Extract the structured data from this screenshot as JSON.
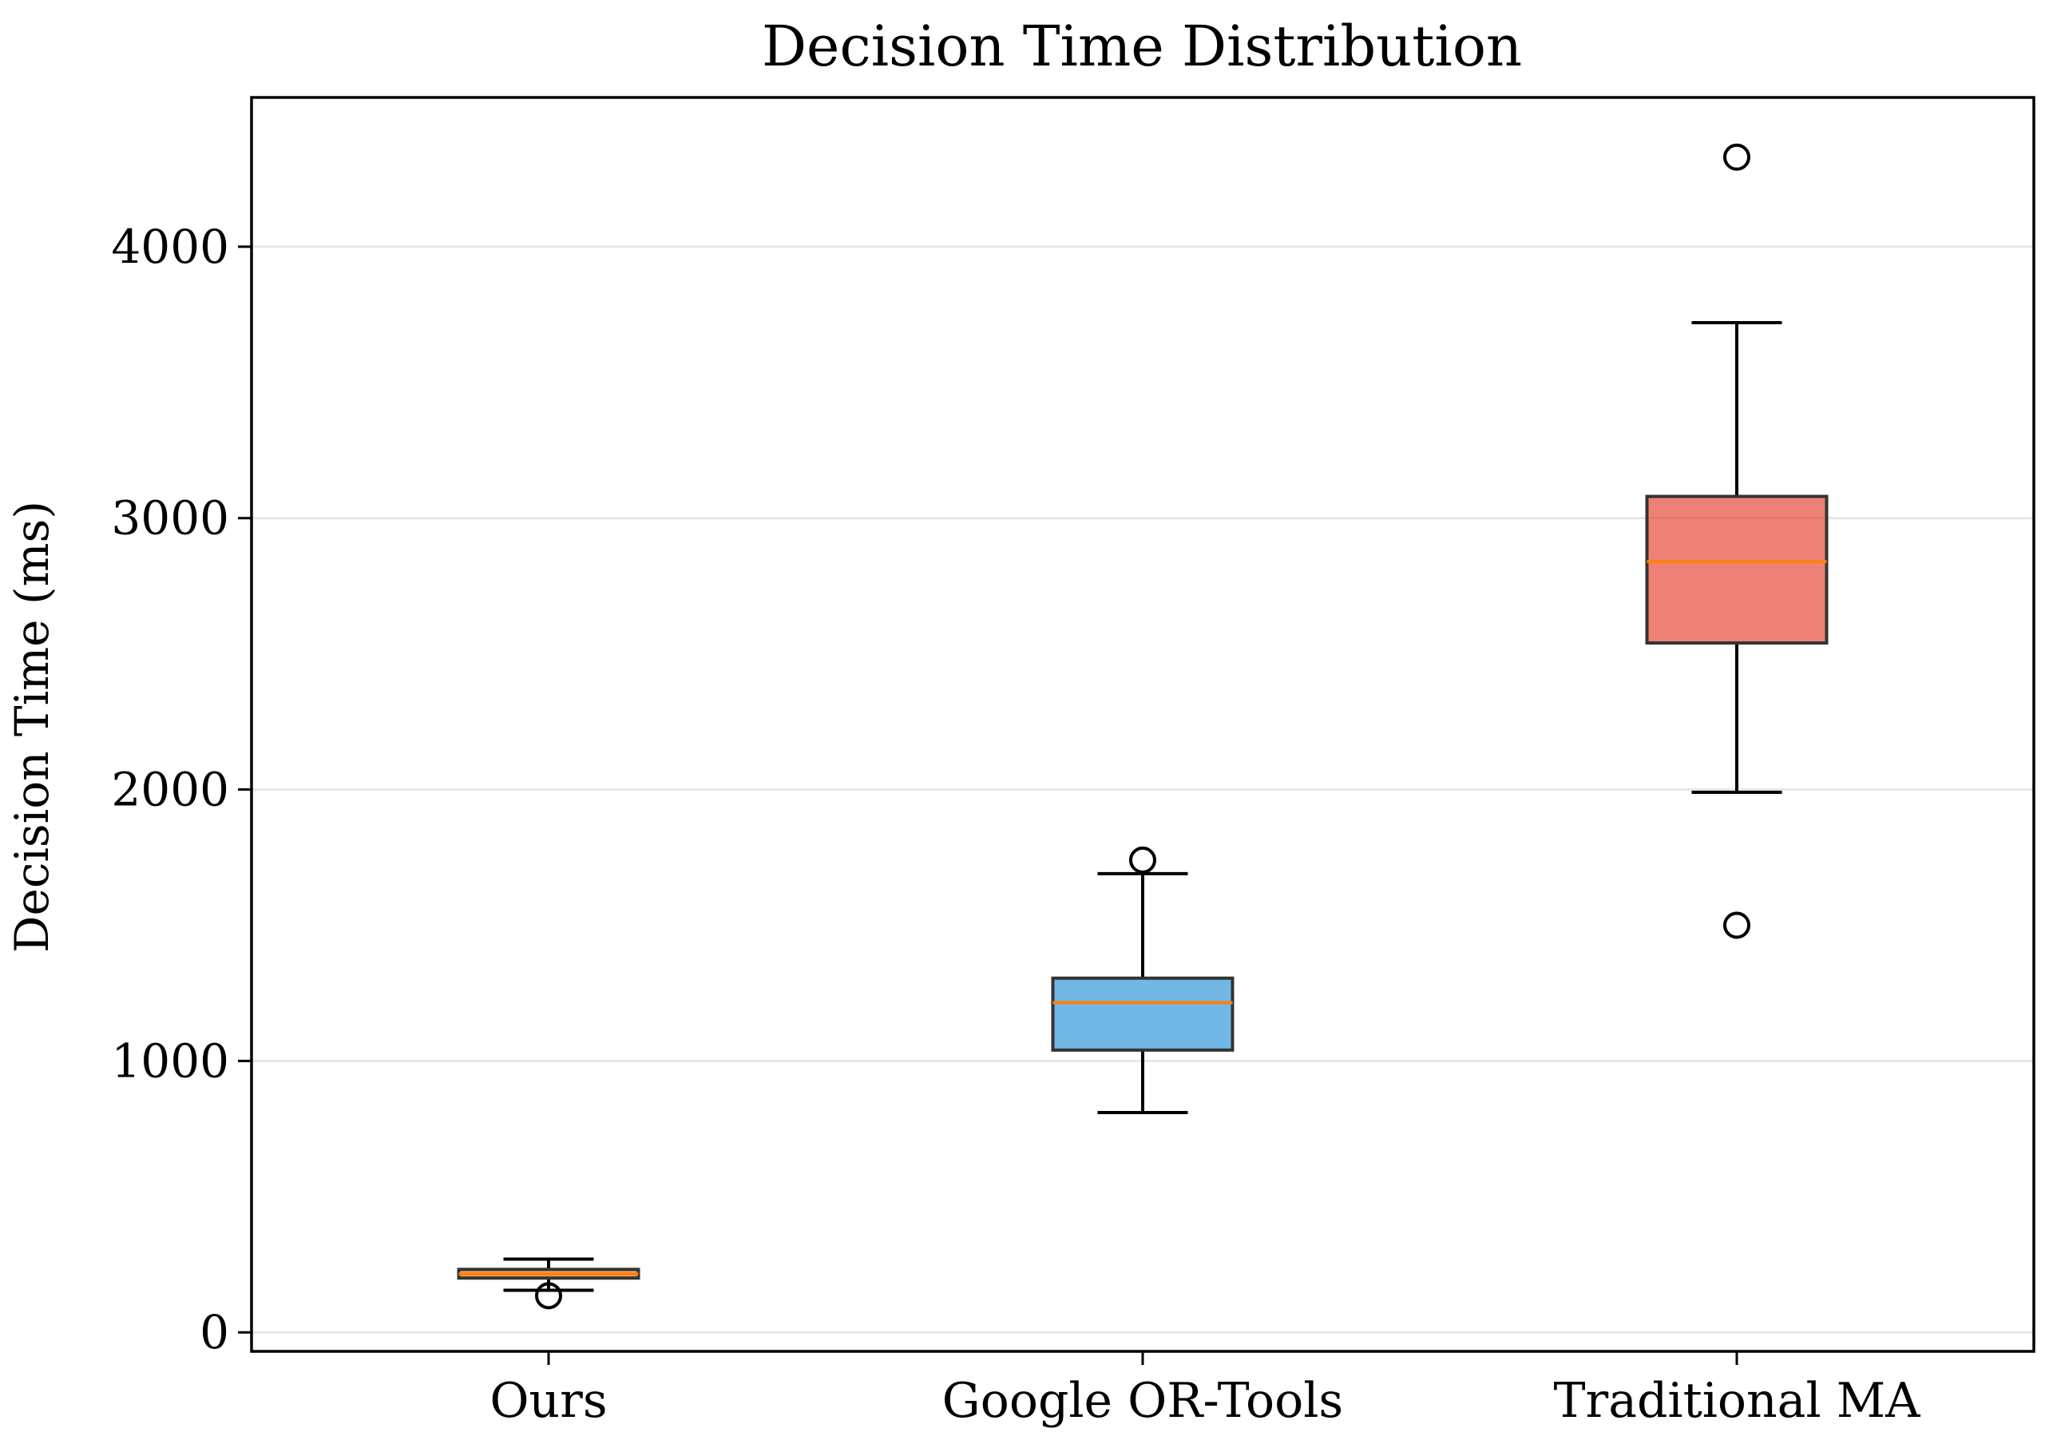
{
  "chart_data": {
    "type": "boxplot",
    "title": "Decision Time Distribution",
    "xlabel": "",
    "ylabel": "Decision Time (ms)",
    "ylim": [
      -70,
      4550
    ],
    "yticks": [
      0,
      1000,
      2000,
      3000,
      4000
    ],
    "grid": "horizontal",
    "categories": [
      "Ours",
      "Google OR-Tools",
      "Traditional MA"
    ],
    "boxes": [
      {
        "category": "Ours",
        "whisker_low": 155,
        "q1": 200,
        "median": 215,
        "q3": 232,
        "whisker_high": 270,
        "outliers": [
          135
        ],
        "color": "#e67e22"
      },
      {
        "category": "Google OR-Tools",
        "whisker_low": 810,
        "q1": 1040,
        "median": 1215,
        "q3": 1305,
        "whisker_high": 1690,
        "outliers": [
          1740
        ],
        "color": "#3498db"
      },
      {
        "category": "Traditional MA",
        "whisker_low": 1990,
        "q1": 2540,
        "median": 2840,
        "q3": 3080,
        "whisker_high": 3720,
        "outliers": [
          4330,
          1500
        ],
        "color": "#e74c3c"
      }
    ],
    "median_color": "#ff7f0e",
    "box_edge_color": "#333333",
    "grid_color": "#e6e6e6"
  }
}
